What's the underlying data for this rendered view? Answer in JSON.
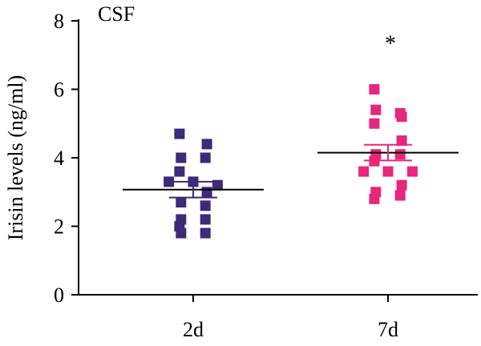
{
  "chart_data": {
    "type": "scatter",
    "panel_label": "CSF",
    "ylabel": "Irisin levels (ng/ml)",
    "xlabel": "",
    "categories": [
      "2d",
      "7d"
    ],
    "ylim": [
      0,
      8
    ],
    "yticks": [
      0,
      2,
      4,
      6,
      8
    ],
    "series": [
      {
        "category": "2d",
        "color": "#3d2a7a",
        "marker": "square",
        "values": [
          4.7,
          4.4,
          4.0,
          4.0,
          3.6,
          3.3,
          3.3,
          3.2,
          3.0,
          2.7,
          2.6,
          2.2,
          2.2,
          2.0,
          1.8,
          1.8
        ],
        "mean": 3.07,
        "sem_upper": 3.3,
        "sem_lower": 2.84
      },
      {
        "category": "7d",
        "color": "#e8267e",
        "marker": "square",
        "values": [
          6.0,
          5.4,
          5.3,
          5.2,
          5.0,
          4.5,
          4.1,
          4.1,
          3.9,
          3.6,
          3.6,
          3.6,
          3.2,
          3.0,
          2.9,
          2.8
        ],
        "mean": 4.15,
        "sem_upper": 4.38,
        "sem_lower": 3.92
      }
    ],
    "annotations": [
      {
        "text": "*",
        "category": "7d",
        "y": 7.5
      }
    ]
  }
}
